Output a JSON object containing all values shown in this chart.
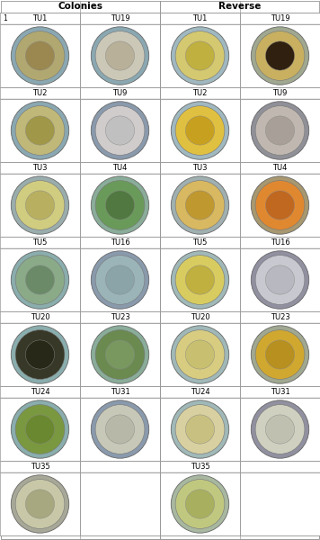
{
  "title_colonies": "Colonies",
  "title_reverse": "Reverse",
  "row_labels": [
    [
      "TU1",
      "TU19",
      "TU1",
      "TU19"
    ],
    [
      "TU2",
      "TU9",
      "TU2",
      "TU9"
    ],
    [
      "TU3",
      "TU4",
      "TU3",
      "TU4"
    ],
    [
      "TU5",
      "TU16",
      "TU5",
      "TU16"
    ],
    [
      "TU20",
      "TU23",
      "TU20",
      "TU23"
    ],
    [
      "TU24",
      "TU31",
      "TU24",
      "TU31"
    ],
    [
      "TU35",
      "",
      "TU35",
      ""
    ]
  ],
  "row_number": "1",
  "bg_color": "#ffffff",
  "grid_color": "#999999",
  "label_fontsize": 6.0,
  "header_fontsize": 7.5,
  "dish_data": [
    [
      {
        "outer": "#8aa8b2",
        "mid": "#b0a870",
        "inner": "#9a8850",
        "spots": "#8a7040"
      },
      {
        "outer": "#8aa8b2",
        "mid": "#ccc8b8",
        "inner": "#b8b098",
        "spots": "#a8a088"
      },
      {
        "outer": "#a0b8c0",
        "mid": "#d4c870",
        "inner": "#c0b040",
        "spots": "#504020"
      },
      {
        "outer": "#a0a890",
        "mid": "#c8b060",
        "inner": "#302010",
        "spots": "#605040"
      }
    ],
    [
      {
        "outer": "#8aa8b2",
        "mid": "#c0b878",
        "inner": "#a09848",
        "spots": "#887830"
      },
      {
        "outer": "#8a9aad",
        "mid": "#d0cccc",
        "inner": "#c0c0c0",
        "spots": "#e0e0e0"
      },
      {
        "outer": "#a0b8c0",
        "mid": "#e0c040",
        "inner": "#c8a020",
        "spots": "#e8c030"
      },
      {
        "outer": "#909098",
        "mid": "#c0b8b0",
        "inner": "#a8a098",
        "spots": "#c8c0b8"
      }
    ],
    [
      {
        "outer": "#9aadad",
        "mid": "#d0cc80",
        "inner": "#b8b060",
        "spots": "#c8b040"
      },
      {
        "outer": "#8aad9a",
        "mid": "#6a9a5a",
        "inner": "#507840",
        "spots": "#789060"
      },
      {
        "outer": "#a0b0b0",
        "mid": "#d8b860",
        "inner": "#c09830",
        "spots": "#c88820"
      },
      {
        "outer": "#a89870",
        "mid": "#e08830",
        "inner": "#c06820",
        "spots": "#e07010"
      }
    ],
    [
      {
        "outer": "#8aadad",
        "mid": "#8aaa88",
        "inner": "#6a8a68",
        "spots": "#a0c0a0"
      },
      {
        "outer": "#8a9aad",
        "mid": "#9ab4b8",
        "inner": "#8aa4a8",
        "spots": "#c0d4d8"
      },
      {
        "outer": "#a0b8b8",
        "mid": "#d8cc60",
        "inner": "#c0b040",
        "spots": "#e0d050"
      },
      {
        "outer": "#9090a0",
        "mid": "#c8c8d0",
        "inner": "#b8b8c0",
        "spots": "#d8d8e0"
      }
    ],
    [
      {
        "outer": "#8aadad",
        "mid": "#383828",
        "inner": "#282818",
        "spots": "#484838"
      },
      {
        "outer": "#8aad9a",
        "mid": "#6a8a50",
        "inner": "#789860",
        "spots": "#c8c860"
      },
      {
        "outer": "#a0b8b8",
        "mid": "#d8cc80",
        "inner": "#c8c070",
        "spots": "#e0d080"
      },
      {
        "outer": "#a0a890",
        "mid": "#d0a830",
        "inner": "#b89020",
        "spots": "#e0b840"
      }
    ],
    [
      {
        "outer": "#8aadad",
        "mid": "#7a9840",
        "inner": "#6a8830",
        "spots": "#9ab060"
      },
      {
        "outer": "#8a9aad",
        "mid": "#c8c8b8",
        "inner": "#b8b8a8",
        "spots": "#d8d8c8"
      },
      {
        "outer": "#a0b8b8",
        "mid": "#d8d0a0",
        "inner": "#c8c080",
        "spots": "#e0d890"
      },
      {
        "outer": "#9090a0",
        "mid": "#d0d0c0",
        "inner": "#c0c0b0",
        "spots": "#e0e0d0"
      }
    ],
    [
      {
        "outer": "#a8a898",
        "mid": "#c8c8a8",
        "inner": "#a8a880",
        "spots": "#504030"
      },
      {
        "outer": "#ffffff",
        "mid": "#ffffff",
        "inner": "#ffffff",
        "spots": "#ffffff"
      },
      {
        "outer": "#a8b8a0",
        "mid": "#c0c880",
        "inner": "#a8b060",
        "spots": "#b8c070"
      },
      {
        "outer": "#ffffff",
        "mid": "#ffffff",
        "inner": "#ffffff",
        "spots": "#ffffff"
      }
    ]
  ]
}
